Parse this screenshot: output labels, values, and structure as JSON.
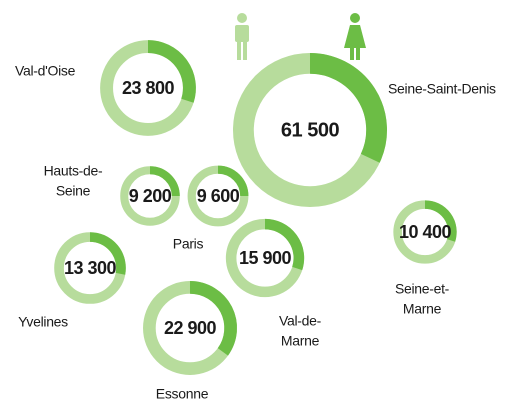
{
  "chart_data": {
    "type": "donut-bubble",
    "categories": [
      [
        "Val-d'Oise"
      ],
      [
        "Seine-Saint-Denis"
      ],
      [
        "Hauts-de-",
        "Seine"
      ],
      [
        "Paris"
      ],
      [
        "Yvelines"
      ],
      [
        "Val-de-",
        "Marne"
      ],
      [
        "Seine-et-",
        "Marne"
      ],
      [
        "Essonne"
      ]
    ],
    "values": [
      23800,
      61500,
      9200,
      9600,
      13300,
      15900,
      10400,
      22900
    ],
    "value_labels": [
      "23 800",
      "61 500",
      "9 200",
      "9 600",
      "13 300",
      "15 900",
      "10 400",
      "22 900"
    ],
    "shares": [
      30,
      32,
      25,
      25,
      28,
      30,
      30,
      35
    ],
    "colors": {
      "dark": "#6cbd45",
      "light": "#b7dc9c"
    }
  }
}
